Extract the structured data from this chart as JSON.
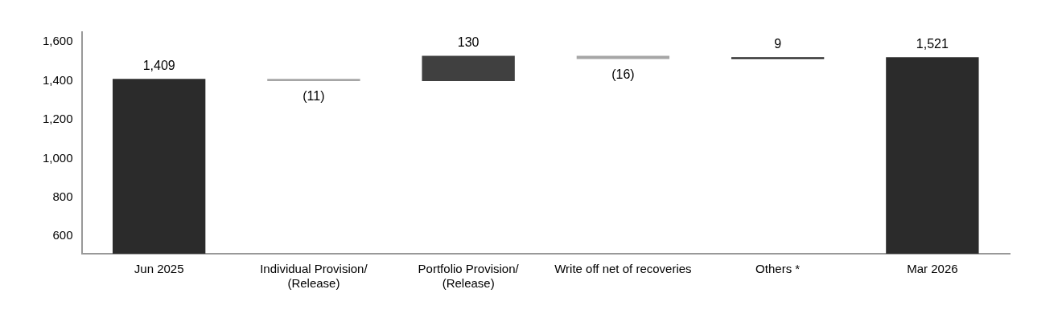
{
  "chart_data": {
    "type": "bar",
    "categories": [
      "Jun 2025",
      "Individual Provision/ (Release)",
      "Portfolio Provision/ (Release)",
      "Write off net of recoveries",
      "Others *",
      "Mar 2026"
    ],
    "values": [
      1409,
      -11,
      130,
      -16,
      9,
      1521
    ],
    "base": [
      null,
      1409,
      1398,
      1528,
      1512,
      null
    ],
    "colors": [
      "#2b2b2b",
      "#a6a6a6",
      "#404040",
      "#a6a6a6",
      "#262626",
      "#2b2b2b"
    ],
    "value_labels": [
      "1,409",
      "(11)",
      "130",
      "(16)",
      "9",
      "1,521"
    ],
    "ylim": [
      510,
      1650
    ],
    "yticks": [
      {
        "value": 600,
        "label": "600"
      },
      {
        "value": 800,
        "label": "800"
      },
      {
        "value": 1000,
        "label": "1,000"
      },
      {
        "value": 1200,
        "label": "1,200"
      },
      {
        "value": 1400,
        "label": "1,400"
      },
      {
        "value": 1600,
        "label": "1,600"
      }
    ],
    "grid": false,
    "legend": false
  }
}
